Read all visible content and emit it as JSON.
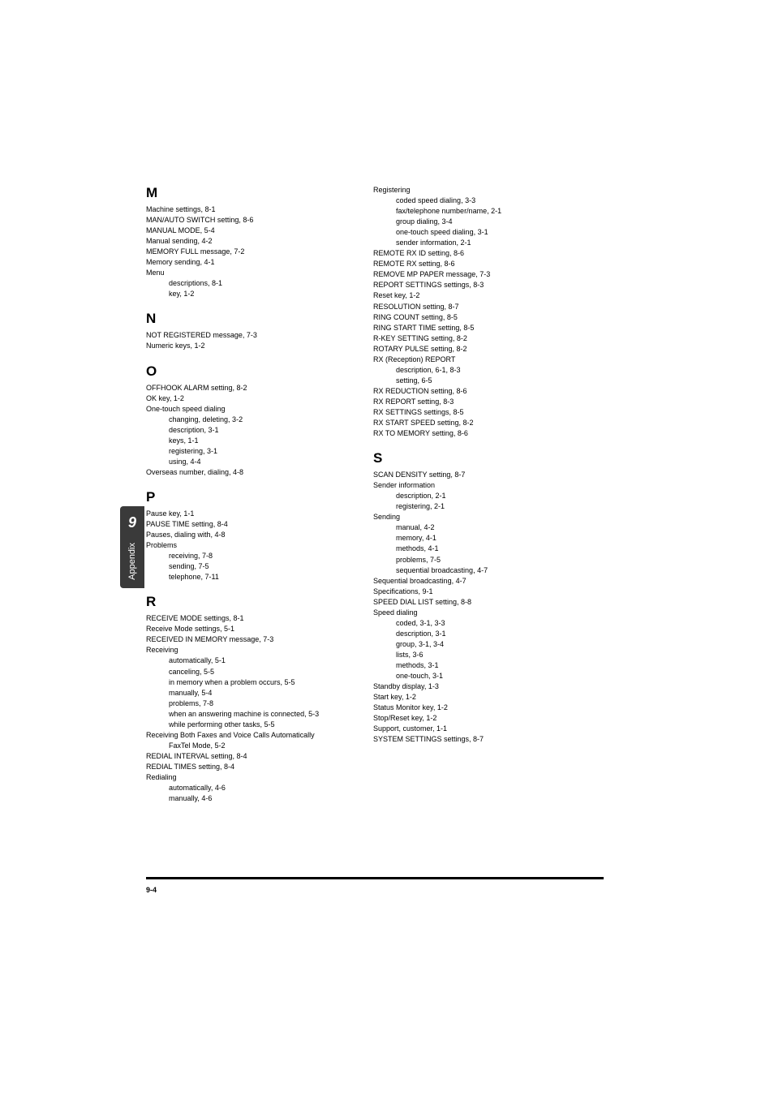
{
  "tab": {
    "number": "9",
    "label": "Appendix"
  },
  "footer": {
    "page": "9-4"
  },
  "col1": [
    {
      "type": "letter",
      "text": "M"
    },
    {
      "type": "entry",
      "text": "Machine settings, 8-1"
    },
    {
      "type": "entry",
      "text": "MAN/AUTO SWITCH setting, 8-6"
    },
    {
      "type": "entry",
      "text": "MANUAL MODE, 5-4"
    },
    {
      "type": "entry",
      "text": "Manual sending, 4-2"
    },
    {
      "type": "entry",
      "text": "MEMORY FULL message, 7-2"
    },
    {
      "type": "entry",
      "text": "Memory sending, 4-1"
    },
    {
      "type": "entry",
      "text": "Menu"
    },
    {
      "type": "sub",
      "text": "descriptions, 8-1"
    },
    {
      "type": "sub",
      "text": "key, 1-2"
    },
    {
      "type": "letter",
      "text": "N"
    },
    {
      "type": "entry",
      "text": "NOT REGISTERED message, 7-3"
    },
    {
      "type": "entry",
      "text": "Numeric keys, 1-2"
    },
    {
      "type": "letter",
      "text": "O"
    },
    {
      "type": "entry",
      "text": "OFFHOOK ALARM setting, 8-2"
    },
    {
      "type": "entry",
      "text": "OK key, 1-2"
    },
    {
      "type": "entry",
      "text": "One-touch speed dialing"
    },
    {
      "type": "sub",
      "text": "changing, deleting, 3-2"
    },
    {
      "type": "sub",
      "text": "description, 3-1"
    },
    {
      "type": "sub",
      "text": "keys, 1-1"
    },
    {
      "type": "sub",
      "text": "registering, 3-1"
    },
    {
      "type": "sub",
      "text": "using, 4-4"
    },
    {
      "type": "entry",
      "text": "Overseas number, dialing, 4-8"
    },
    {
      "type": "letter",
      "text": "P"
    },
    {
      "type": "entry",
      "text": "Pause key, 1-1"
    },
    {
      "type": "entry",
      "text": "PAUSE TIME setting, 8-4"
    },
    {
      "type": "entry",
      "text": "Pauses, dialing with, 4-8"
    },
    {
      "type": "entry",
      "text": "Problems"
    },
    {
      "type": "sub",
      "text": "receiving, 7-8"
    },
    {
      "type": "sub",
      "text": "sending, 7-5"
    },
    {
      "type": "sub",
      "text": "telephone, 7-11"
    },
    {
      "type": "letter",
      "text": "R"
    },
    {
      "type": "entry",
      "text": "RECEIVE MODE settings, 8-1"
    },
    {
      "type": "entry",
      "text": "Receive Mode settings, 5-1"
    },
    {
      "type": "entry",
      "text": "RECEIVED IN MEMORY message, 7-3"
    },
    {
      "type": "entry",
      "text": "Receiving"
    },
    {
      "type": "sub",
      "text": "automatically, 5-1"
    },
    {
      "type": "sub",
      "text": "canceling, 5-5"
    },
    {
      "type": "sub",
      "text": "in memory when a problem occurs, 5-5"
    },
    {
      "type": "sub",
      "text": "manually, 5-4"
    },
    {
      "type": "sub",
      "text": "problems, 7-8"
    },
    {
      "type": "sub",
      "text": "when an answering machine is connected, 5-3"
    },
    {
      "type": "sub",
      "text": "while performing other tasks, 5-5"
    },
    {
      "type": "entry",
      "text": "Receiving Both Faxes and Voice Calls Automatically"
    },
    {
      "type": "sub",
      "text": "FaxTel Mode, 5-2"
    },
    {
      "type": "entry",
      "text": "REDIAL INTERVAL setting, 8-4"
    },
    {
      "type": "entry",
      "text": "REDIAL TIMES setting, 8-4"
    },
    {
      "type": "entry",
      "text": "Redialing"
    },
    {
      "type": "sub",
      "text": "automatically, 4-6"
    },
    {
      "type": "sub",
      "text": "manually, 4-6"
    }
  ],
  "col2": [
    {
      "type": "entry",
      "text": "Registering"
    },
    {
      "type": "sub",
      "text": "coded speed dialing, 3-3"
    },
    {
      "type": "sub",
      "text": "fax/telephone number/name, 2-1"
    },
    {
      "type": "sub",
      "text": "group dialing, 3-4"
    },
    {
      "type": "sub",
      "text": "one-touch speed dialing, 3-1"
    },
    {
      "type": "sub",
      "text": "sender information, 2-1"
    },
    {
      "type": "entry",
      "text": "REMOTE RX ID setting, 8-6"
    },
    {
      "type": "entry",
      "text": "REMOTE RX setting, 8-6"
    },
    {
      "type": "entry",
      "text": "REMOVE MP PAPER message, 7-3"
    },
    {
      "type": "entry",
      "text": "REPORT SETTINGS settings, 8-3"
    },
    {
      "type": "entry",
      "text": "Reset key, 1-2"
    },
    {
      "type": "entry",
      "text": "RESOLUTION setting, 8-7"
    },
    {
      "type": "entry",
      "text": "RING COUNT setting, 8-5"
    },
    {
      "type": "entry",
      "text": "RING START TIME setting, 8-5"
    },
    {
      "type": "entry",
      "text": "R-KEY SETTING setting, 8-2"
    },
    {
      "type": "entry",
      "text": "ROTARY PULSE setting, 8-2"
    },
    {
      "type": "entry",
      "text": "RX (Reception) REPORT"
    },
    {
      "type": "sub",
      "text": "description, 6-1, 8-3"
    },
    {
      "type": "sub",
      "text": "setting, 6-5"
    },
    {
      "type": "entry",
      "text": "RX REDUCTION setting, 8-6"
    },
    {
      "type": "entry",
      "text": "RX REPORT setting, 8-3"
    },
    {
      "type": "entry",
      "text": "RX SETTINGS settings, 8-5"
    },
    {
      "type": "entry",
      "text": "RX START SPEED setting, 8-2"
    },
    {
      "type": "entry",
      "text": "RX TO MEMORY setting, 8-6"
    },
    {
      "type": "letter",
      "text": "S"
    },
    {
      "type": "entry",
      "text": "SCAN DENSITY setting, 8-7"
    },
    {
      "type": "entry",
      "text": "Sender information"
    },
    {
      "type": "sub",
      "text": "description, 2-1"
    },
    {
      "type": "sub",
      "text": "registering, 2-1"
    },
    {
      "type": "entry",
      "text": "Sending"
    },
    {
      "type": "sub",
      "text": "manual, 4-2"
    },
    {
      "type": "sub",
      "text": "memory, 4-1"
    },
    {
      "type": "sub",
      "text": "methods, 4-1"
    },
    {
      "type": "sub",
      "text": "problems, 7-5"
    },
    {
      "type": "sub",
      "text": "sequential broadcasting, 4-7"
    },
    {
      "type": "entry",
      "text": "Sequential broadcasting, 4-7"
    },
    {
      "type": "entry",
      "text": "Specifications, 9-1"
    },
    {
      "type": "entry",
      "text": "SPEED DIAL LIST setting, 8-8"
    },
    {
      "type": "entry",
      "text": "Speed dialing"
    },
    {
      "type": "sub",
      "text": "coded, 3-1, 3-3"
    },
    {
      "type": "sub",
      "text": "description, 3-1"
    },
    {
      "type": "sub",
      "text": "group, 3-1, 3-4"
    },
    {
      "type": "sub",
      "text": "lists, 3-6"
    },
    {
      "type": "sub",
      "text": "methods, 3-1"
    },
    {
      "type": "sub",
      "text": "one-touch, 3-1"
    },
    {
      "type": "entry",
      "text": "Standby display, 1-3"
    },
    {
      "type": "entry",
      "text": "Start key, 1-2"
    },
    {
      "type": "entry",
      "text": "Status Monitor key, 1-2"
    },
    {
      "type": "entry",
      "text": "Stop/Reset key, 1-2"
    },
    {
      "type": "entry",
      "text": "Support, customer, 1-1"
    },
    {
      "type": "entry",
      "text": "SYSTEM SETTINGS settings, 8-7"
    }
  ]
}
